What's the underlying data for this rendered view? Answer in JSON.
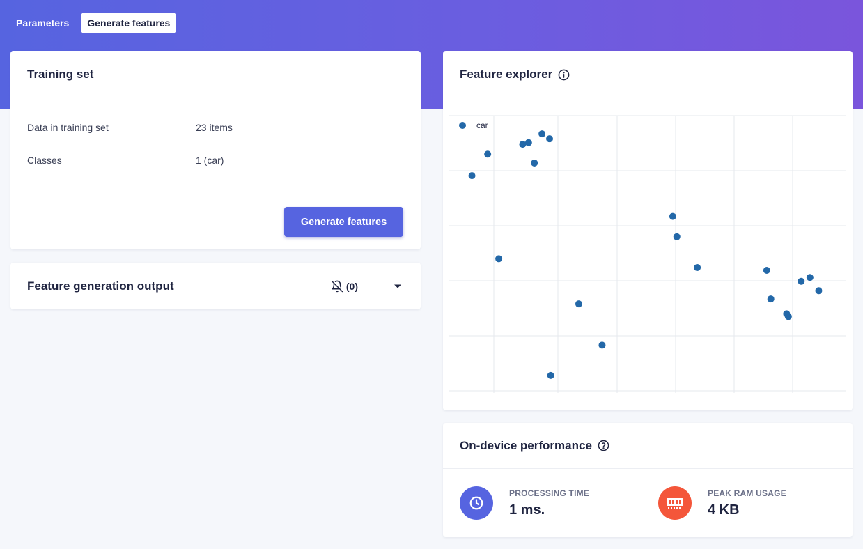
{
  "tabs": [
    {
      "label": "Parameters",
      "active": false
    },
    {
      "label": "Generate features",
      "active": true
    }
  ],
  "training_set": {
    "title": "Training set",
    "rows": [
      {
        "label": "Data in training set",
        "value": "23 items"
      },
      {
        "label": "Classes",
        "value": "1 (car)"
      }
    ],
    "button_label": "Generate features"
  },
  "feature_output": {
    "title": "Feature generation output",
    "notification_count": "(0)",
    "icons": [
      "bell-off-icon",
      "caret-down-icon"
    ]
  },
  "feature_explorer": {
    "title": "Feature explorer",
    "info_icon": "info-icon"
  },
  "performance": {
    "title": "On-device performance",
    "help_icon": "question-icon",
    "metrics": [
      {
        "label": "PROCESSING TIME",
        "value": "1 ms.",
        "icon": "clock-icon",
        "color": "#5664e0"
      },
      {
        "label": "PEAK RAM USAGE",
        "value": "4 KB",
        "icon": "memory-chip-icon",
        "color": "#f4563a"
      }
    ]
  },
  "colors": {
    "accent": "#5664e0",
    "point": "#2368a8",
    "ram": "#f4563a"
  },
  "chart_data": {
    "type": "scatter",
    "title": "",
    "xlabel": "",
    "ylabel": "",
    "grid": true,
    "legend": "top-left",
    "xlim": [
      0,
      6.8
    ],
    "ylim": [
      0,
      5
    ],
    "series": [
      {
        "name": "car",
        "color": "#2368a8",
        "points": [
          {
            "x": 0.4,
            "y": 3.91
          },
          {
            "x": 0.67,
            "y": 4.3
          },
          {
            "x": 1.27,
            "y": 4.48
          },
          {
            "x": 1.37,
            "y": 4.51
          },
          {
            "x": 1.6,
            "y": 4.67
          },
          {
            "x": 1.73,
            "y": 4.58
          },
          {
            "x": 1.47,
            "y": 4.14
          },
          {
            "x": 0.86,
            "y": 2.4
          },
          {
            "x": 2.23,
            "y": 1.58
          },
          {
            "x": 2.63,
            "y": 0.83
          },
          {
            "x": 1.75,
            "y": 0.28
          },
          {
            "x": 3.84,
            "y": 3.17
          },
          {
            "x": 3.91,
            "y": 2.8
          },
          {
            "x": 4.26,
            "y": 2.24
          },
          {
            "x": 5.45,
            "y": 2.19
          },
          {
            "x": 5.52,
            "y": 1.67
          },
          {
            "x": 5.79,
            "y": 1.4
          },
          {
            "x": 5.82,
            "y": 1.35
          },
          {
            "x": 6.04,
            "y": 1.99
          },
          {
            "x": 6.19,
            "y": 2.06
          },
          {
            "x": 6.34,
            "y": 1.82
          }
        ]
      }
    ]
  }
}
